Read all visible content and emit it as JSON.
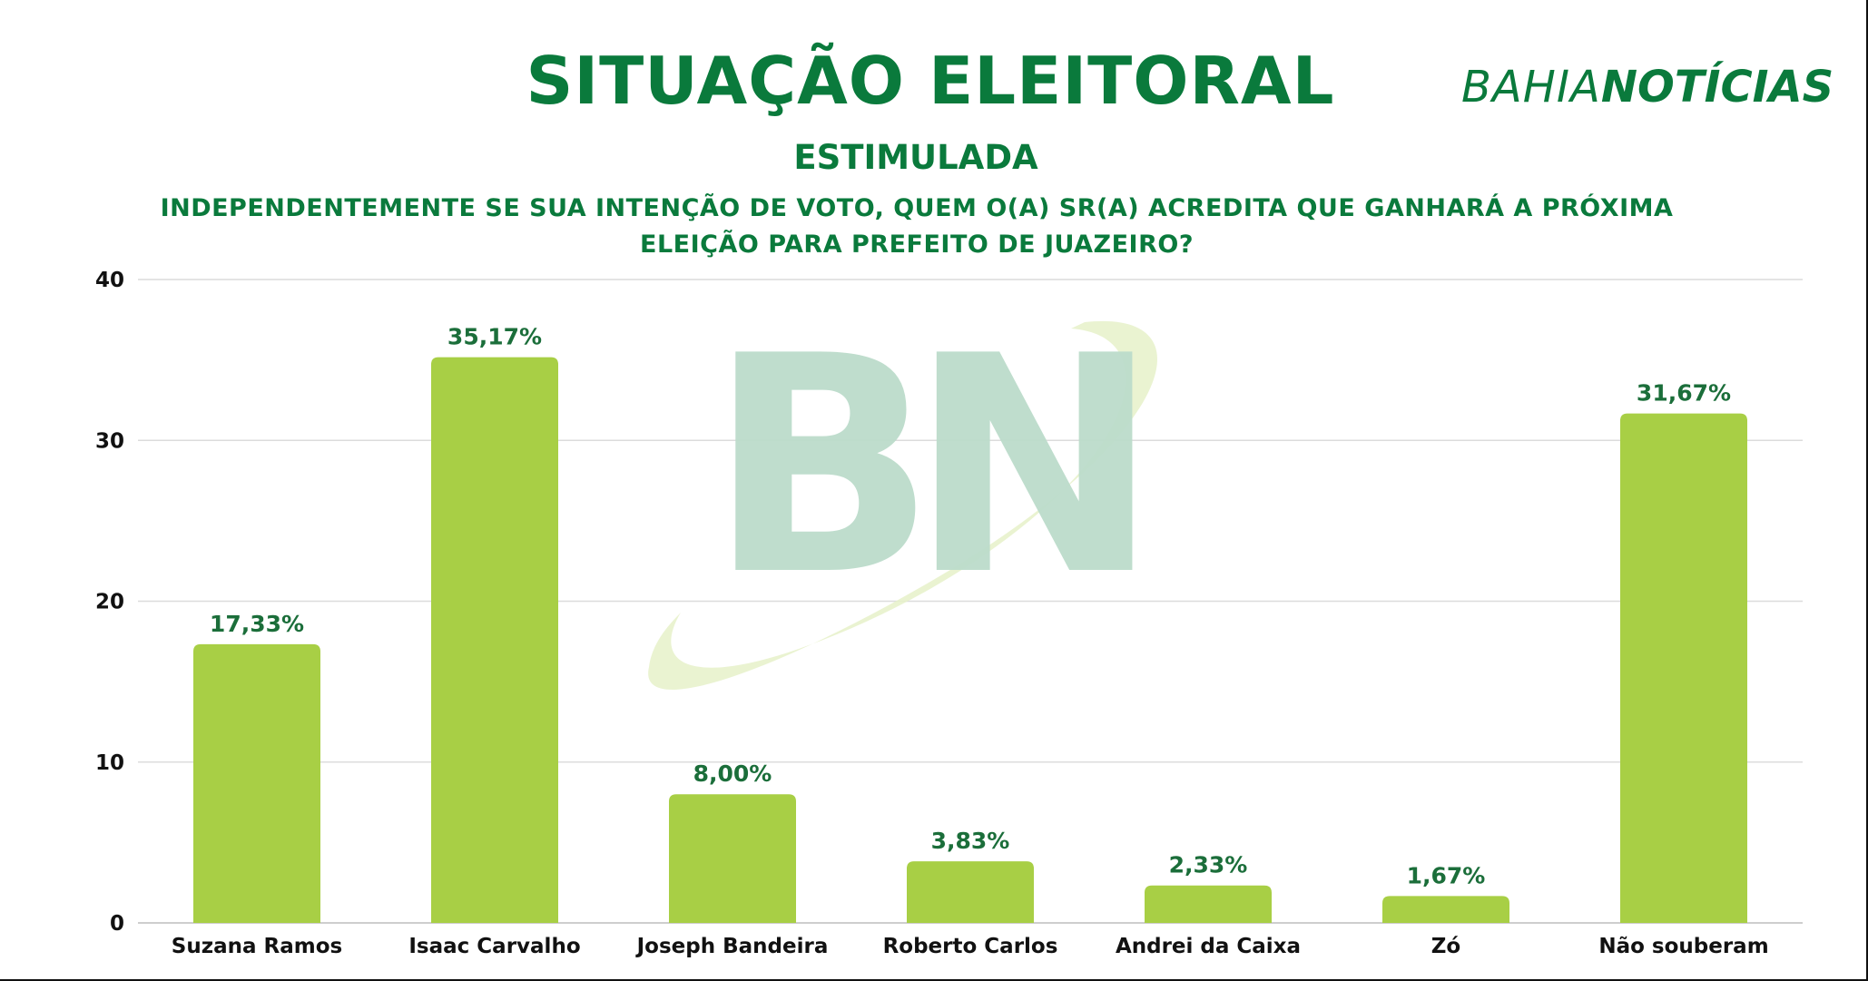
{
  "header": {
    "title": "SITUAÇÃO ELEITORAL",
    "brand_part1": "BAHIA",
    "brand_part2": "NOTÍCIAS",
    "subtitle": "ESTIMULADA",
    "question": "INDEPENDENTEMENTE SE SUA INTENÇÃO DE VOTO, QUEM O(A) SR(A) ACREDITA QUE GANHARÁ A PRÓXIMA ELEIÇÃO PARA PREFEITO DE JUAZEIRO?"
  },
  "watermark": {
    "text": "BN"
  },
  "colors": {
    "title": "#0a7a3c",
    "bar": "#a8cf45",
    "data_label": "#1b6e3a",
    "gridline": "#dcdcdc",
    "watermark_letters": "#bcdccb",
    "watermark_swoosh": "#e6f1c9"
  },
  "chart_data": {
    "type": "bar",
    "categories": [
      "Suzana Ramos",
      "Isaac Carvalho",
      "Joseph Bandeira",
      "Roberto Carlos",
      "Andrei da Caixa",
      "Zó",
      "Não souberam"
    ],
    "values": [
      17.33,
      35.17,
      8.0,
      3.83,
      2.33,
      1.67,
      31.67
    ],
    "data_labels": [
      "17,33%",
      "35,17%",
      "8,00%",
      "3,83%",
      "2,33%",
      "1,67%",
      "31,67%"
    ],
    "yticks": [
      0,
      10,
      20,
      30,
      40
    ],
    "ylim": [
      0,
      40
    ],
    "grid": true,
    "legend": "none"
  }
}
